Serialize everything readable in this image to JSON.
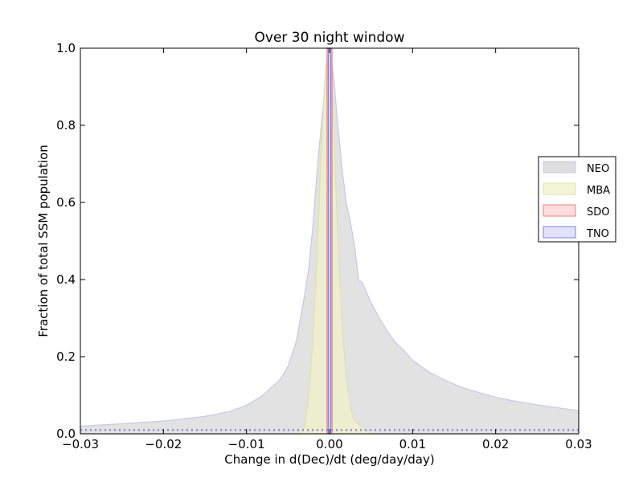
{
  "chart_data": {
    "type": "area",
    "title": "Over 30 night window",
    "xlabel": "Change in d(Dec)/dt (deg/day/day)",
    "ylabel": "Fraction of total SSM population",
    "xlim": [
      -0.03,
      0.03
    ],
    "ylim": [
      0,
      1.0
    ],
    "xticks": [
      -0.03,
      -0.02,
      -0.01,
      0.0,
      0.01,
      0.02,
      0.03
    ],
    "xtick_labels": [
      "−0.03",
      "−0.02",
      "−0.01",
      "0.00",
      "0.01",
      "0.02",
      "0.03"
    ],
    "yticks": [
      0.0,
      0.2,
      0.4,
      0.6,
      0.8,
      1.0
    ],
    "ytick_labels": [
      "0.0",
      "0.2",
      "0.4",
      "0.6",
      "0.8",
      "1.0"
    ],
    "grid": false,
    "legend_position": "right",
    "series": [
      {
        "name": "NEO",
        "fill": "#d3d3d3",
        "edge": "#c8c8e6",
        "points": [
          [
            -0.03,
            0.02
          ],
          [
            -0.025,
            0.026
          ],
          [
            -0.02,
            0.033
          ],
          [
            -0.015,
            0.045
          ],
          [
            -0.012,
            0.058
          ],
          [
            -0.01,
            0.074
          ],
          [
            -0.008,
            0.1
          ],
          [
            -0.006,
            0.14
          ],
          [
            -0.005,
            0.175
          ],
          [
            -0.004,
            0.24
          ],
          [
            -0.0035,
            0.3
          ],
          [
            -0.003,
            0.36
          ],
          [
            -0.0025,
            0.43
          ],
          [
            -0.002,
            0.54
          ],
          [
            -0.0015,
            0.68
          ],
          [
            -0.001,
            0.8
          ],
          [
            -0.0005,
            0.905
          ],
          [
            0.0,
            1.0
          ],
          [
            0.0005,
            0.925
          ],
          [
            0.001,
            0.8
          ],
          [
            0.0015,
            0.69
          ],
          [
            0.002,
            0.6
          ],
          [
            0.0025,
            0.55
          ],
          [
            0.003,
            0.49
          ],
          [
            0.0035,
            0.4
          ],
          [
            0.004,
            0.39
          ],
          [
            0.005,
            0.34
          ],
          [
            0.006,
            0.3
          ],
          [
            0.007,
            0.265
          ],
          [
            0.008,
            0.235
          ],
          [
            0.009,
            0.215
          ],
          [
            0.01,
            0.19
          ],
          [
            0.012,
            0.16
          ],
          [
            0.014,
            0.138
          ],
          [
            0.016,
            0.12
          ],
          [
            0.018,
            0.107
          ],
          [
            0.02,
            0.095
          ],
          [
            0.022,
            0.086
          ],
          [
            0.025,
            0.075
          ],
          [
            0.028,
            0.066
          ],
          [
            0.03,
            0.06
          ]
        ]
      },
      {
        "name": "MBA",
        "fill": "#f0f0c8",
        "edge": "#e0e0b0",
        "points": [
          [
            -0.0035,
            0.0
          ],
          [
            -0.003,
            0.02
          ],
          [
            -0.0025,
            0.1
          ],
          [
            -0.002,
            0.24
          ],
          [
            -0.0015,
            0.46
          ],
          [
            -0.001,
            0.74
          ],
          [
            -0.0005,
            0.95
          ],
          [
            0.0,
            1.0
          ],
          [
            0.0005,
            0.8
          ],
          [
            0.001,
            0.5
          ],
          [
            0.0015,
            0.29
          ],
          [
            0.002,
            0.15
          ],
          [
            0.0025,
            0.07
          ],
          [
            0.003,
            0.035
          ],
          [
            0.004,
            0.015
          ],
          [
            0.005,
            0.0
          ]
        ]
      },
      {
        "name": "SDO",
        "fill": "#ffd0d0",
        "edge": "#f08080",
        "points": [
          [
            -0.0003,
            1.0
          ],
          [
            0.0003,
            1.0
          ]
        ],
        "baseline_y": 0.01
      },
      {
        "name": "TNO",
        "fill": "#d8d8ff",
        "edge": "#8080e0",
        "points": [
          [
            -0.00015,
            1.0
          ],
          [
            0.00015,
            1.0
          ]
        ],
        "baseline_y": 0.01
      }
    ]
  }
}
